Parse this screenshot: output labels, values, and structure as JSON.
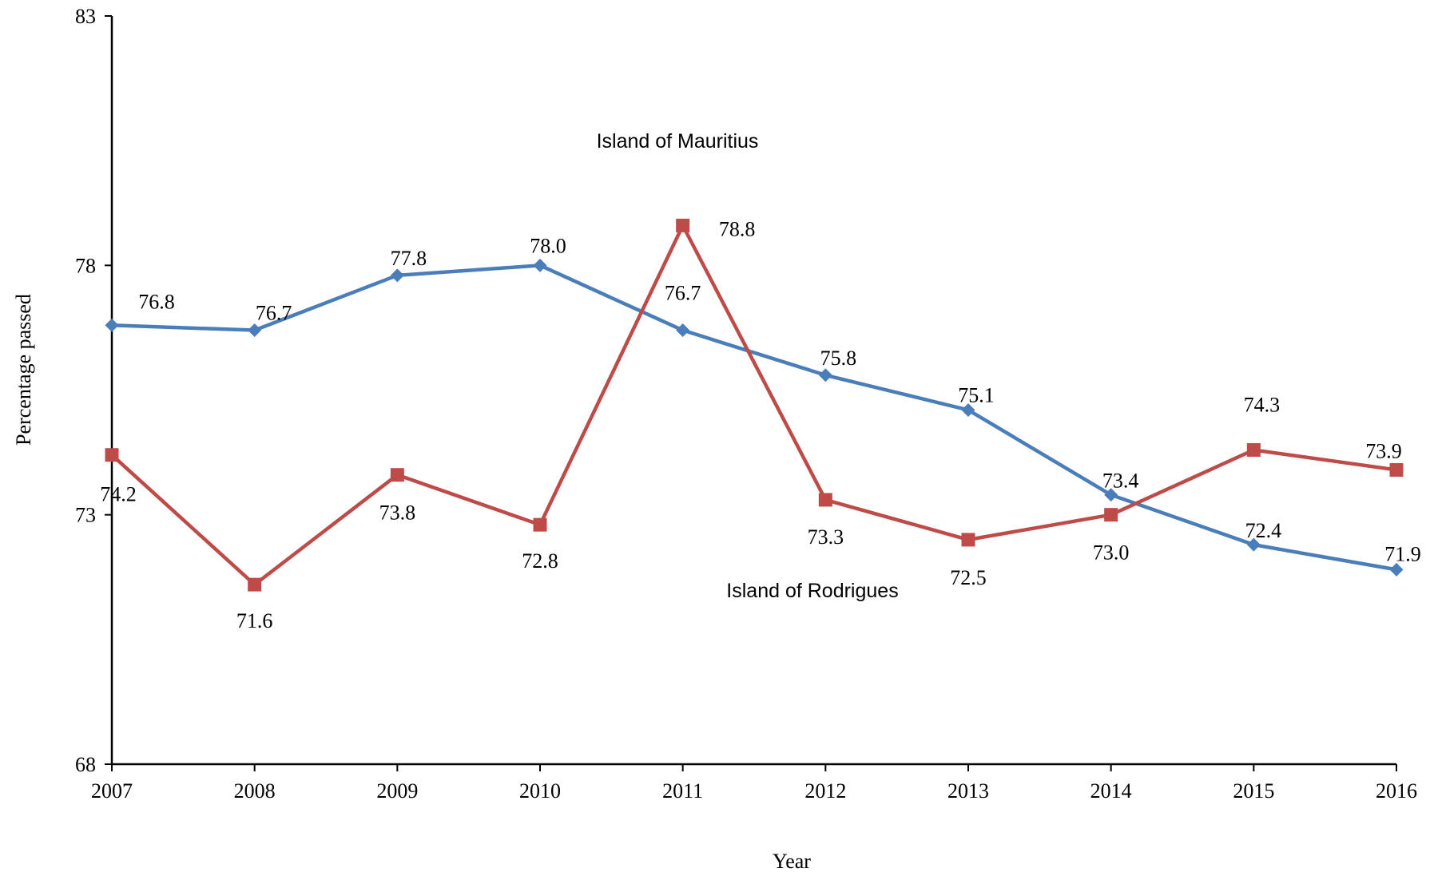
{
  "chart_data": {
    "type": "line",
    "x": [
      "2007",
      "2008",
      "2009",
      "2010",
      "2011",
      "2012",
      "2013",
      "2014",
      "2015",
      "2016"
    ],
    "ylim": [
      68,
      83
    ],
    "yticks": [
      "68",
      "73",
      "78",
      "83"
    ],
    "xlabel": "Year",
    "ylabel": "Percentage passed",
    "grid": false,
    "series": [
      {
        "name": "Island of Mauritius",
        "color": "#4a7ebb",
        "marker": "diamond",
        "values": [
          76.8,
          76.7,
          77.8,
          78.0,
          76.7,
          75.8,
          75.1,
          73.4,
          72.4,
          71.9
        ],
        "labels": [
          "76.8",
          "76.7",
          "77.8",
          "78.0",
          "76.7",
          "75.8",
          "75.1",
          "73.4",
          "72.4",
          "71.9"
        ]
      },
      {
        "name": "Island of Rodrigues",
        "color": "#be4b48",
        "marker": "square",
        "values": [
          74.2,
          71.6,
          73.8,
          72.8,
          78.8,
          73.3,
          72.5,
          73.0,
          74.3,
          73.9
        ],
        "labels": [
          "74.2",
          "71.6",
          "73.8",
          "72.8",
          "78.8",
          "73.3",
          "72.5",
          "73.0",
          "74.3",
          "73.9"
        ]
      }
    ]
  }
}
